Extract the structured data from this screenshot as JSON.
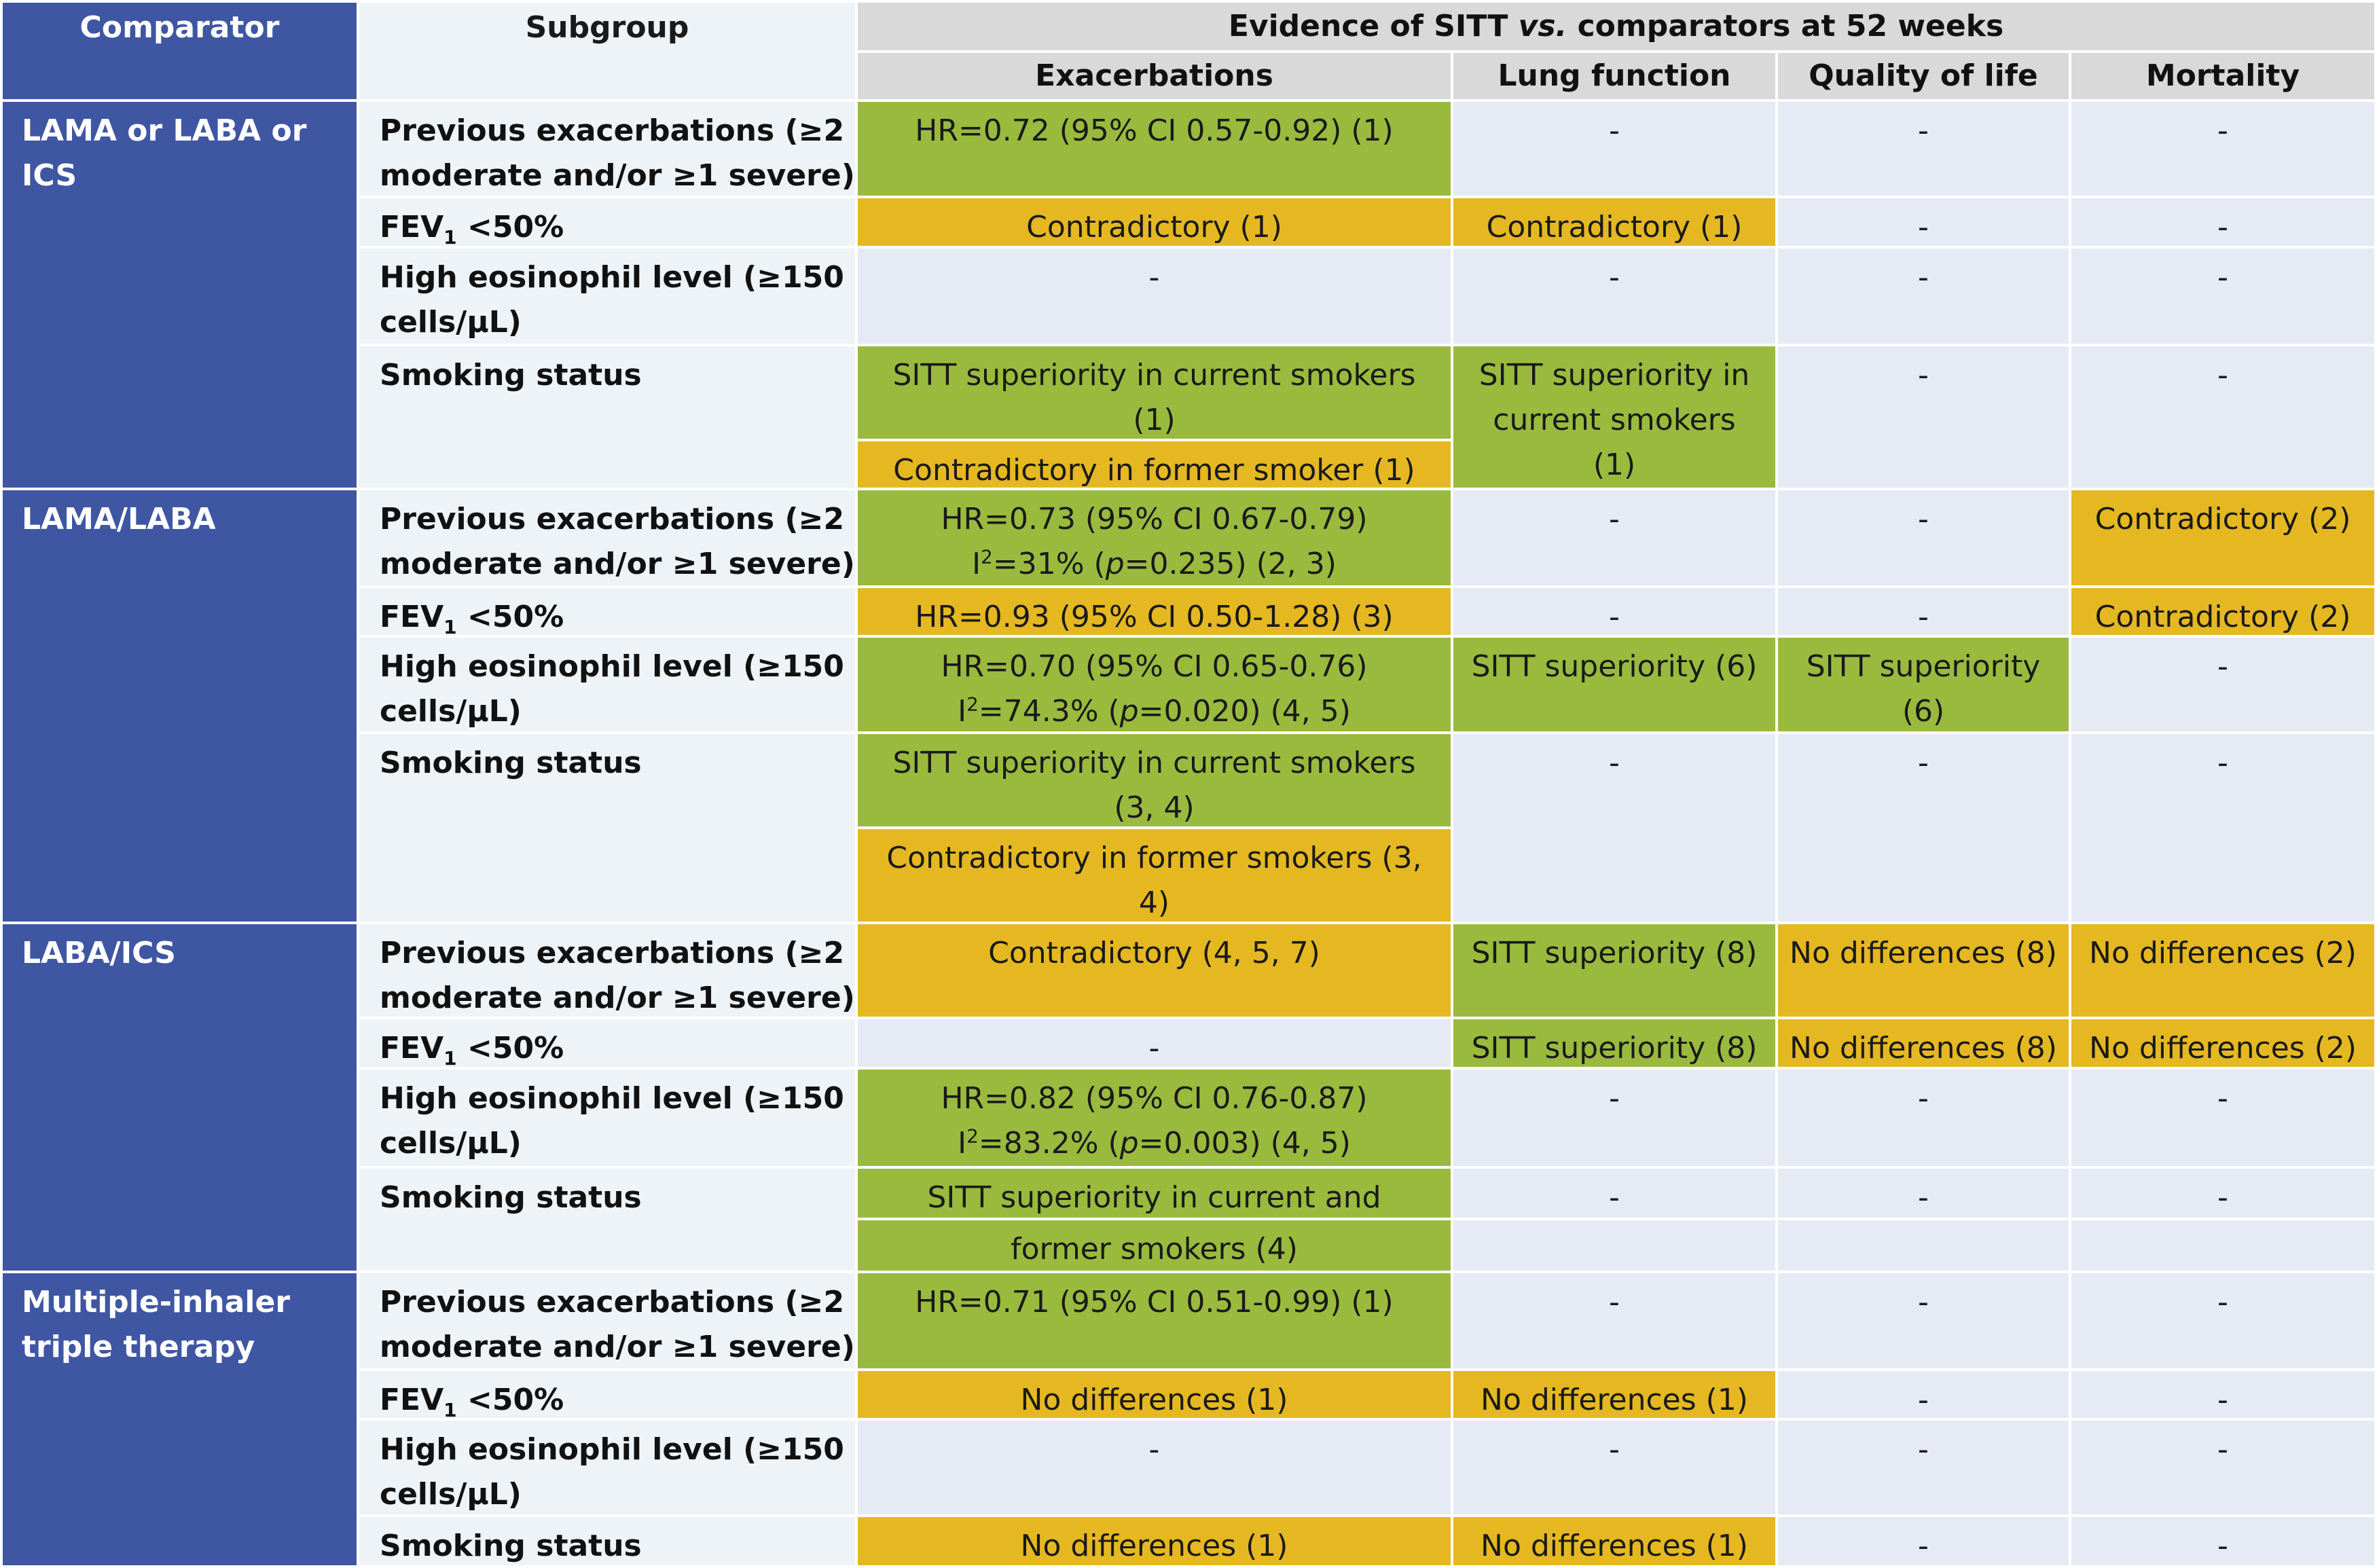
{
  "colors": {
    "comparator_bg": "#3f56a3",
    "subgroup_bg": "#edf3f7",
    "header_bg": "#d9d9d9",
    "empty_cell": "#e5eaf4",
    "green_cell": "#9aba3e",
    "yellow_cell": "#e5b821"
  },
  "header": {
    "comparator": "Comparator",
    "subgroup": "Subgroup",
    "evidence_pre": "Evidence of SITT ",
    "evidence_vs": "vs.",
    "evidence_post": " comparators at 52 weeks",
    "exacerbations": "Exacerbations",
    "lung_function": "Lung function",
    "quality_of_life": "Quality of life",
    "mortality": "Mortality"
  },
  "comparators": {
    "c1": "LAMA or LABA or ICS",
    "c2": "LAMA/LABA",
    "c3": "LABA/ICS",
    "c4_line1": "Multiple-inhaler",
    "c4_line2": "triple therapy"
  },
  "subgroups": {
    "prev_exac_line1": "Previous exacerbations (≥2",
    "prev_exac_line2": "moderate and/or ≥1 severe)",
    "fev_pre": "FEV",
    "fev_sub": "1",
    "fev_post": " <50%",
    "eos_line1": "High eosinophil level (≥150",
    "eos_line2": "cells/µL)",
    "smoking": "Smoking status"
  },
  "cells": {
    "dash": "-",
    "r1_exac": "HR=0.72 (95% CI 0.57-0.92) (1)",
    "r2_exac": "Contradictory (1)",
    "r2_lung": "Contradictory (1)",
    "r4_exac_a_line1": "SITT superiority in current smokers",
    "r4_exac_a_line2": "(1)",
    "r4_exac_b": "Contradictory in former smoker (1)",
    "r4_lung_line1": "SITT superiority in",
    "r4_lung_line2": "current smokers",
    "r4_lung_line3": "(1)",
    "r5_exac_line1": "HR=0.73 (95% CI 0.67-0.79)",
    "r5_exac_line2_pre": "I",
    "r5_exac_line2_sup": "2",
    "r5_exac_line2_mid": "=31% (",
    "r5_exac_line2_p": "p",
    "r5_exac_line2_post": "=0.235) (2, 3)",
    "r5_mort": "Contradictory (2)",
    "r6_exac": "HR=0.93 (95% CI 0.50-1.28) (3)",
    "r6_mort": "Contradictory (2)",
    "r7_exac_line1": "HR=0.70 (95% CI 0.65-0.76)",
    "r7_exac_line2_pre": "I",
    "r7_exac_line2_sup": "2",
    "r7_exac_line2_mid": "=74.3% (",
    "r7_exac_line2_p": "p",
    "r7_exac_line2_post": "=0.020) (4, 5)",
    "r7_lung": "SITT superiority (6)",
    "r7_qol": "SITT superiority (6)",
    "r8_exac_a_line1": "SITT superiority in current smokers",
    "r8_exac_a_line2": "(3, 4)",
    "r8_exac_b_line1": "Contradictory in former smokers (3,",
    "r8_exac_b_line2": "4)",
    "r9_exac": "Contradictory (4, 5, 7)",
    "r9_lung": "SITT superiority (8)",
    "r9_qol": "No differences (8)",
    "r9_mort": "No differences (2)",
    "r10_lung": "SITT superiority (8)",
    "r10_qol": "No differences (8)",
    "r10_mort": "No differences (2)",
    "r11_exac_line1": "HR=0.82 (95% CI 0.76-0.87)",
    "r11_exac_line2_pre": "I",
    "r11_exac_line2_sup": "2",
    "r11_exac_line2_mid": "=83.2% (",
    "r11_exac_line2_p": "p",
    "r11_exac_line2_post": "=0.003) (4, 5)",
    "r12_exac_a": "SITT superiority in current and",
    "r12_exac_b": "former smokers (4)",
    "r13_exac": "HR=0.71 (95% CI 0.51-0.99) (1)",
    "r14_exac": "No differences (1)",
    "r14_lung": "No differences (1)",
    "r16_exac": "No differences (1)",
    "r16_lung": "No differences (1)"
  }
}
